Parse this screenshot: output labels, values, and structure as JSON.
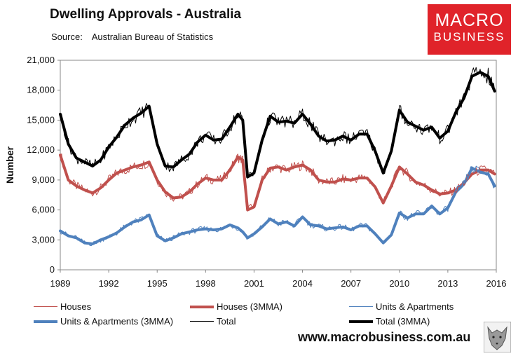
{
  "title": "Dwelling Approvals - Australia",
  "source_label": "Source:",
  "source_text": "Australian Bureau of Statistics",
  "logo": {
    "line1": "MACRO",
    "line2": "BUSINESS"
  },
  "url": "www.macrobusiness.com.au",
  "chart_data": {
    "type": "line",
    "ylabel": "Number",
    "xlabel": "",
    "ylim": [
      0,
      21000
    ],
    "xlim": [
      1989,
      2016
    ],
    "yticks": [
      0,
      3000,
      6000,
      9000,
      12000,
      15000,
      18000,
      21000
    ],
    "ytick_labels": [
      "0",
      "3,000",
      "6,000",
      "9,000",
      "12,000",
      "15,000",
      "18,000",
      "21,000"
    ],
    "xticks": [
      1989,
      1992,
      1995,
      1998,
      2001,
      2004,
      2007,
      2010,
      2013,
      2016
    ],
    "xtick_labels": [
      "1989",
      "1992",
      "1995",
      "1998",
      "2001",
      "2004",
      "2007",
      "2010",
      "2013",
      "2016"
    ],
    "x": [
      1989.0,
      1989.5,
      1990.0,
      1990.5,
      1991.0,
      1991.5,
      1992.0,
      1992.5,
      1993.0,
      1993.5,
      1994.0,
      1994.5,
      1995.0,
      1995.5,
      1996.0,
      1996.5,
      1997.0,
      1997.5,
      1998.0,
      1998.5,
      1999.0,
      1999.5,
      2000.0,
      2000.3,
      2000.6,
      2001.0,
      2001.5,
      2002.0,
      2002.5,
      2003.0,
      2003.5,
      2004.0,
      2004.5,
      2005.0,
      2005.5,
      2006.0,
      2006.5,
      2007.0,
      2007.5,
      2008.0,
      2008.5,
      2009.0,
      2009.5,
      2010.0,
      2010.5,
      2011.0,
      2011.5,
      2012.0,
      2012.5,
      2013.0,
      2013.5,
      2014.0,
      2014.5,
      2015.0,
      2015.5,
      2015.9
    ],
    "series": [
      {
        "name": "Houses",
        "color": "#c0504d",
        "width": 1,
        "role": "monthly",
        "values": [
          11600,
          9000,
          8400,
          8000,
          7700,
          8200,
          9000,
          9700,
          10000,
          10300,
          10500,
          10800,
          9000,
          7800,
          7200,
          7300,
          7800,
          8600,
          9200,
          9000,
          9000,
          10000,
          11300,
          11000,
          6200,
          6300,
          9000,
          10200,
          10300,
          10000,
          10300,
          10500,
          10000,
          9000,
          8800,
          8800,
          9100,
          9000,
          9200,
          9200,
          8300,
          6700,
          8400,
          10300,
          9600,
          8800,
          8500,
          8000,
          7600,
          7700,
          8000,
          8700,
          9600,
          10000,
          10000,
          9600
        ]
      },
      {
        "name": "Houses (3MMA)",
        "color": "#c0504d",
        "width": 4,
        "role": "trend",
        "values": [
          11500,
          9000,
          8400,
          8000,
          7700,
          8200,
          9000,
          9700,
          10000,
          10300,
          10500,
          10800,
          9000,
          7800,
          7200,
          7300,
          7800,
          8600,
          9200,
          9000,
          9000,
          10000,
          11300,
          11000,
          6000,
          6300,
          9000,
          10200,
          10300,
          10000,
          10300,
          10500,
          10000,
          9000,
          8800,
          8800,
          9100,
          9000,
          9200,
          9200,
          8300,
          6700,
          8400,
          10300,
          9600,
          8800,
          8500,
          8000,
          7600,
          7700,
          8000,
          8700,
          9600,
          10000,
          10000,
          9600
        ]
      },
      {
        "name": "Units & Apartments",
        "color": "#4f81bd",
        "width": 1,
        "role": "monthly",
        "values": [
          3900,
          3400,
          3200,
          2700,
          2600,
          3000,
          3300,
          3700,
          4300,
          4800,
          5000,
          5500,
          3400,
          2900,
          3200,
          3600,
          3800,
          4000,
          4100,
          4000,
          4100,
          4500,
          4200,
          3800,
          3200,
          3600,
          4300,
          5100,
          4600,
          4800,
          4400,
          5300,
          4500,
          4400,
          4100,
          4200,
          4300,
          4000,
          4400,
          4400,
          3600,
          2700,
          3500,
          5700,
          5200,
          5600,
          5600,
          6400,
          5600,
          6200,
          7800,
          8600,
          10200,
          9800,
          9600,
          8400
        ]
      },
      {
        "name": "Units & Apartments (3MMA)",
        "color": "#4f81bd",
        "width": 4,
        "role": "trend",
        "values": [
          3900,
          3400,
          3200,
          2700,
          2600,
          3000,
          3300,
          3700,
          4300,
          4800,
          5000,
          5500,
          3400,
          2900,
          3200,
          3600,
          3800,
          4000,
          4100,
          4000,
          4100,
          4500,
          4200,
          3800,
          3200,
          3600,
          4300,
          5100,
          4600,
          4800,
          4400,
          5300,
          4500,
          4400,
          4100,
          4200,
          4300,
          4000,
          4400,
          4400,
          3600,
          2700,
          3500,
          5700,
          5200,
          5600,
          5600,
          6400,
          5600,
          6200,
          7800,
          8600,
          10200,
          9800,
          9600,
          8400
        ]
      },
      {
        "name": "Total",
        "color": "#000000",
        "width": 1,
        "role": "monthly",
        "values": [
          15600,
          12600,
          11200,
          10800,
          10400,
          11000,
          12300,
          13300,
          14500,
          15200,
          15700,
          16400,
          12600,
          10400,
          10300,
          11000,
          11600,
          12800,
          13500,
          13000,
          13100,
          14300,
          15600,
          15000,
          9300,
          9700,
          13000,
          15400,
          14800,
          14900,
          14700,
          15600,
          14600,
          13400,
          12900,
          13000,
          13400,
          13000,
          13600,
          13600,
          11900,
          9700,
          11900,
          16000,
          14800,
          14400,
          14000,
          14300,
          13200,
          13900,
          15800,
          17200,
          19400,
          19800,
          19400,
          17900
        ]
      },
      {
        "name": "Total (3MMA)",
        "color": "#000000",
        "width": 4,
        "role": "trend",
        "values": [
          15600,
          12600,
          11200,
          10800,
          10400,
          11000,
          12300,
          13300,
          14500,
          15200,
          15700,
          16400,
          12600,
          10400,
          10300,
          11000,
          11600,
          12800,
          13500,
          13000,
          13100,
          14300,
          15600,
          15000,
          9300,
          9700,
          13000,
          15400,
          14800,
          14900,
          14700,
          15600,
          14600,
          13400,
          12900,
          13000,
          13400,
          13000,
          13600,
          13600,
          11900,
          9700,
          11900,
          16000,
          14800,
          14400,
          14000,
          14300,
          13200,
          13900,
          15800,
          17200,
          19400,
          19800,
          19400,
          17900
        ]
      }
    ],
    "legend_position": "bottom"
  }
}
